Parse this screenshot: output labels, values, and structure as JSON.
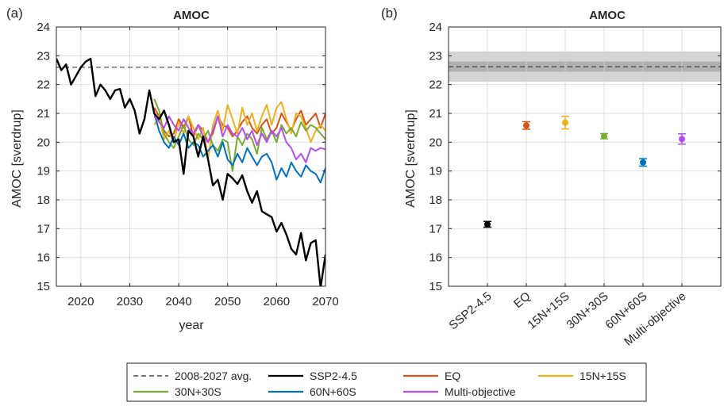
{
  "chart_data": [
    {
      "type": "line",
      "panel_label": "(a)",
      "title": "AMOC",
      "xlabel": "year",
      "ylabel": "AMOC [sverdrup]",
      "xlim": [
        2015,
        2070
      ],
      "ylim": [
        15,
        24
      ],
      "xticks": [
        2020,
        2030,
        2040,
        2050,
        2060,
        2070
      ],
      "yticks": [
        15,
        16,
        17,
        18,
        19,
        20,
        21,
        22,
        23,
        24
      ],
      "grid": true,
      "reference_line": {
        "name": "2008-2027 avg.",
        "value": 22.6,
        "color": "#262626",
        "style": "dashed"
      },
      "series": [
        {
          "name": "SSP2-4.5",
          "color": "#000000",
          "x": [
            2015,
            2016,
            2017,
            2018,
            2019,
            2020,
            2021,
            2022,
            2023,
            2024,
            2025,
            2026,
            2027,
            2028,
            2029,
            2030,
            2031,
            2032,
            2033,
            2034,
            2035,
            2036,
            2037,
            2038,
            2039,
            2040,
            2041,
            2042,
            2043,
            2044,
            2045,
            2046,
            2047,
            2048,
            2049,
            2050,
            2051,
            2052,
            2053,
            2054,
            2055,
            2056,
            2057,
            2058,
            2059,
            2060,
            2061,
            2062,
            2063,
            2064,
            2065,
            2066,
            2067,
            2068,
            2069,
            2070
          ],
          "values": [
            22.9,
            22.5,
            22.7,
            22.0,
            22.3,
            22.6,
            22.8,
            22.9,
            21.6,
            22.0,
            21.8,
            21.5,
            21.8,
            21.85,
            21.2,
            21.5,
            21.1,
            20.3,
            20.8,
            21.8,
            21.0,
            20.8,
            21.1,
            20.6,
            20.0,
            20.1,
            18.9,
            20.4,
            20.2,
            19.5,
            20.2,
            19.4,
            18.5,
            18.7,
            18.0,
            18.9,
            18.75,
            18.55,
            18.85,
            18.3,
            17.9,
            18.3,
            17.6,
            17.5,
            17.4,
            16.9,
            17.2,
            16.8,
            16.3,
            16.1,
            16.85,
            15.9,
            16.5,
            16.6,
            14.95,
            16.1
          ]
        },
        {
          "name": "EQ",
          "color": "#d95319",
          "x": [
            2035,
            2036,
            2037,
            2038,
            2039,
            2040,
            2041,
            2042,
            2043,
            2044,
            2045,
            2046,
            2047,
            2048,
            2049,
            2050,
            2051,
            2052,
            2053,
            2054,
            2055,
            2056,
            2057,
            2058,
            2059,
            2060,
            2061,
            2062,
            2063,
            2064,
            2065,
            2066,
            2067,
            2068,
            2069,
            2070
          ],
          "values": [
            21.2,
            20.9,
            20.4,
            20.2,
            20.3,
            20.8,
            20.5,
            20.9,
            20.2,
            20.6,
            20.4,
            20.0,
            20.3,
            20.9,
            20.6,
            20.5,
            20.2,
            20.4,
            20.7,
            20.9,
            20.5,
            20.3,
            20.6,
            20.8,
            20.3,
            20.5,
            21.0,
            20.7,
            20.4,
            20.8,
            21.1,
            20.6,
            20.8,
            21.0,
            20.5,
            21.0
          ]
        },
        {
          "name": "15N+15S",
          "color": "#edb120",
          "x": [
            2035,
            2036,
            2037,
            2038,
            2039,
            2040,
            2041,
            2042,
            2043,
            2044,
            2045,
            2046,
            2047,
            2048,
            2049,
            2050,
            2051,
            2052,
            2053,
            2054,
            2055,
            2056,
            2057,
            2058,
            2059,
            2060,
            2061,
            2062,
            2063,
            2064,
            2065,
            2066,
            2067,
            2068,
            2069,
            2070
          ],
          "values": [
            20.6,
            20.9,
            20.1,
            20.4,
            20.0,
            20.7,
            20.3,
            20.9,
            20.5,
            20.1,
            20.5,
            19.4,
            20.6,
            21.1,
            20.4,
            21.3,
            20.8,
            20.3,
            21.2,
            20.6,
            21.0,
            20.4,
            20.9,
            21.3,
            20.6,
            21.2,
            21.4,
            20.8,
            20.3,
            21.0,
            20.9,
            20.5,
            20.0,
            20.4,
            20.6,
            20.4
          ]
        },
        {
          "name": "30N+30S",
          "color": "#77ac30",
          "x": [
            2035,
            2036,
            2037,
            2038,
            2039,
            2040,
            2041,
            2042,
            2043,
            2044,
            2045,
            2046,
            2047,
            2048,
            2049,
            2050,
            2051,
            2052,
            2053,
            2054,
            2055,
            2056,
            2057,
            2058,
            2059,
            2060,
            2061,
            2062,
            2063,
            2064,
            2065,
            2066,
            2067,
            2068,
            2069,
            2070
          ],
          "values": [
            21.5,
            21.1,
            20.3,
            20.0,
            19.8,
            20.2,
            20.6,
            20.1,
            19.9,
            20.3,
            20.1,
            20.4,
            19.9,
            19.7,
            20.1,
            20.0,
            19.0,
            20.2,
            19.9,
            20.3,
            20.1,
            19.6,
            20.5,
            20.1,
            20.4,
            20.0,
            20.6,
            20.3,
            20.5,
            20.2,
            20.7,
            20.4,
            20.6,
            20.5,
            20.3,
            20.1
          ]
        },
        {
          "name": "60N+60S",
          "color": "#0072bd",
          "x": [
            2035,
            2036,
            2037,
            2038,
            2039,
            2040,
            2041,
            2042,
            2043,
            2044,
            2045,
            2046,
            2047,
            2048,
            2049,
            2050,
            2051,
            2052,
            2053,
            2054,
            2055,
            2056,
            2057,
            2058,
            2059,
            2060,
            2061,
            2062,
            2063,
            2064,
            2065,
            2066,
            2067,
            2068,
            2069,
            2070
          ],
          "values": [
            21.0,
            20.4,
            20.0,
            19.8,
            20.2,
            19.9,
            20.3,
            19.8,
            20.0,
            19.9,
            19.5,
            19.7,
            19.9,
            19.5,
            20.0,
            19.4,
            19.2,
            19.6,
            19.3,
            19.8,
            19.5,
            19.2,
            19.5,
            19.6,
            19.3,
            18.7,
            19.1,
            18.8,
            19.3,
            19.0,
            18.8,
            19.2,
            19.0,
            18.9,
            18.6,
            19.1
          ]
        },
        {
          "name": "Multi-objective",
          "color": "#b44ef0",
          "x": [
            2035,
            2036,
            2037,
            2038,
            2039,
            2040,
            2041,
            2042,
            2043,
            2044,
            2045,
            2046,
            2047,
            2048,
            2049,
            2050,
            2051,
            2052,
            2053,
            2054,
            2055,
            2056,
            2057,
            2058,
            2059,
            2060,
            2061,
            2062,
            2063,
            2064,
            2065,
            2066,
            2067,
            2068,
            2069,
            2070
          ],
          "values": [
            20.9,
            20.7,
            20.5,
            20.9,
            20.6,
            20.4,
            20.8,
            20.5,
            20.3,
            20.6,
            20.2,
            20.0,
            20.4,
            20.9,
            20.2,
            20.6,
            20.3,
            20.2,
            20.5,
            20.1,
            20.4,
            19.9,
            20.3,
            20.0,
            20.4,
            20.2,
            20.5,
            20.0,
            19.8,
            19.4,
            19.6,
            19.3,
            19.8,
            19.7,
            19.8,
            19.75
          ]
        }
      ]
    },
    {
      "type": "scatter",
      "panel_label": "(b)",
      "title": "AMOC",
      "ylabel": "AMOC [sverdrup]",
      "ylim": [
        15,
        24
      ],
      "yticks": [
        15,
        16,
        17,
        18,
        19,
        20,
        21,
        22,
        23,
        24
      ],
      "grid": true,
      "categories": [
        "SSP2-4.5",
        "EQ",
        "15N+15S",
        "30N+30S",
        "60N+60S",
        "Multi-objective"
      ],
      "values": [
        17.15,
        20.58,
        20.68,
        20.21,
        19.3,
        20.11
      ],
      "error": [
        0.1,
        0.13,
        0.22,
        0.09,
        0.13,
        0.18
      ],
      "colors": [
        "#000000",
        "#d95319",
        "#edb120",
        "#77ac30",
        "#0072bd",
        "#b44ef0"
      ],
      "reference": {
        "mean": 22.62,
        "band_inner": [
          22.45,
          22.8
        ],
        "band_outer": [
          22.1,
          23.15
        ]
      }
    }
  ],
  "legend": {
    "placement": "bottom",
    "entries": [
      {
        "label": "2008-2027 avg.",
        "color": "#262626",
        "style": "dashed"
      },
      {
        "label": "SSP2-4.5",
        "color": "#000000",
        "style": "solid"
      },
      {
        "label": "EQ",
        "color": "#d95319",
        "style": "solid"
      },
      {
        "label": "15N+15S",
        "color": "#edb120",
        "style": "solid"
      },
      {
        "label": "30N+30S",
        "color": "#77ac30",
        "style": "solid"
      },
      {
        "label": "60N+60S",
        "color": "#0072bd",
        "style": "solid"
      },
      {
        "label": "Multi-objective",
        "color": "#b44ef0",
        "style": "solid"
      }
    ]
  }
}
